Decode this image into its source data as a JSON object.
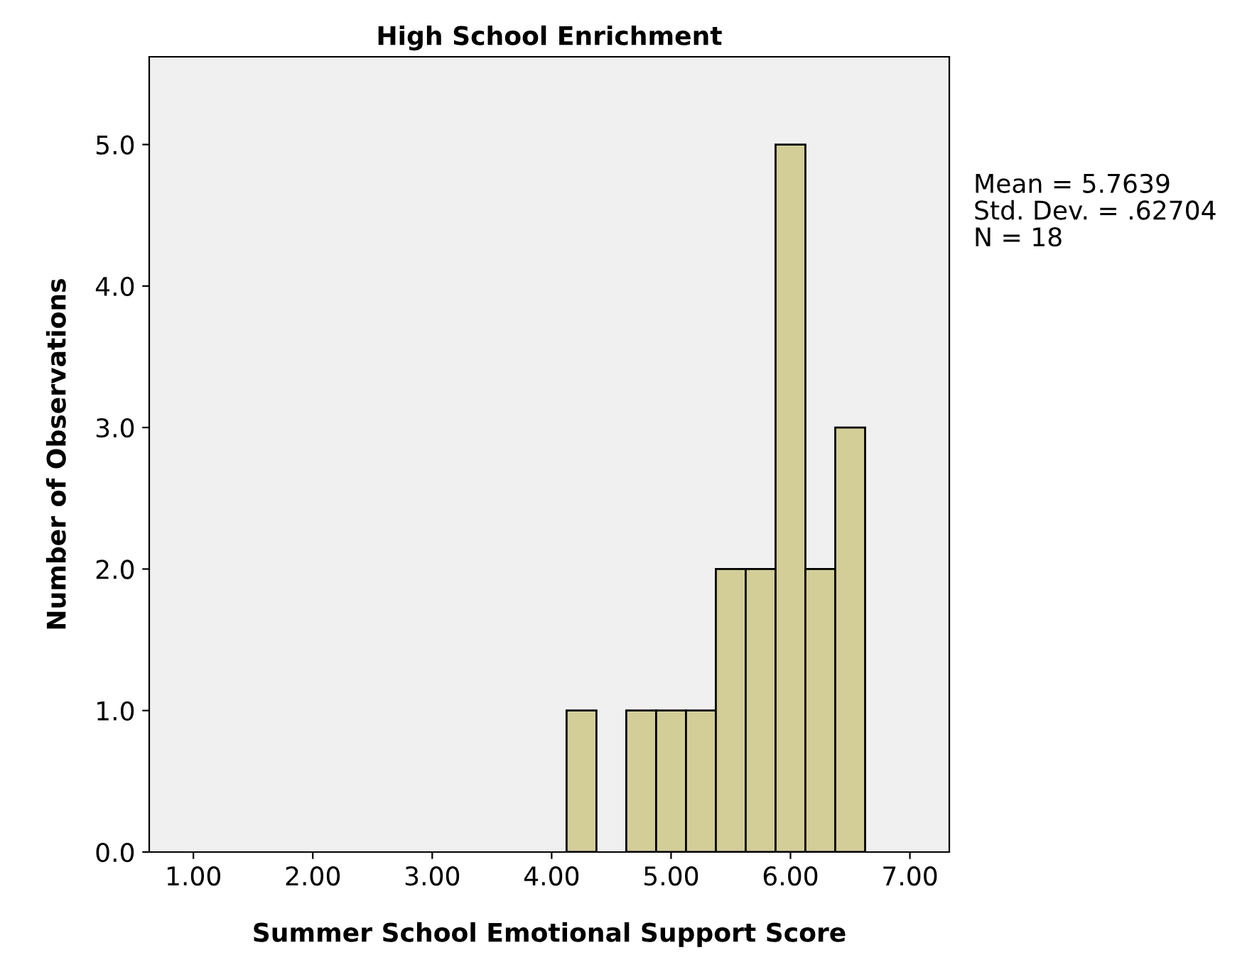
{
  "chart_data": {
    "type": "histogram",
    "title": "High School Enrichment",
    "xlabel": "Summer School Emotional Support Score",
    "ylabel": "Number of Observations",
    "bins": [
      4.125,
      4.375,
      4.625,
      4.875,
      5.125,
      5.375,
      5.625,
      5.875,
      6.125,
      6.375,
      6.625
    ],
    "values": [
      1,
      0,
      1,
      1,
      1,
      2,
      2,
      5,
      2,
      3
    ],
    "color": "#d3ce98",
    "xlim": [
      0.63,
      7.33
    ],
    "ylim": [
      0,
      5.62
    ],
    "xticks": [
      {
        "value": 1,
        "label": "1.00"
      },
      {
        "value": 2,
        "label": "2.00"
      },
      {
        "value": 3,
        "label": "3.00"
      },
      {
        "value": 4,
        "label": "4.00"
      },
      {
        "value": 5,
        "label": "5.00"
      },
      {
        "value": 6,
        "label": "6.00"
      },
      {
        "value": 7,
        "label": "7.00"
      }
    ],
    "yticks": [
      {
        "value": 0,
        "label": "0.0"
      },
      {
        "value": 1,
        "label": "1.0"
      },
      {
        "value": 2,
        "label": "2.0"
      },
      {
        "value": 3,
        "label": "3.0"
      },
      {
        "value": 4,
        "label": "4.0"
      },
      {
        "value": 5,
        "label": "5.0"
      }
    ],
    "annotations": [
      "Mean = 5.7639\nStd. Dev. = .62704\nN = 18"
    ],
    "grid": false,
    "legend": false
  }
}
